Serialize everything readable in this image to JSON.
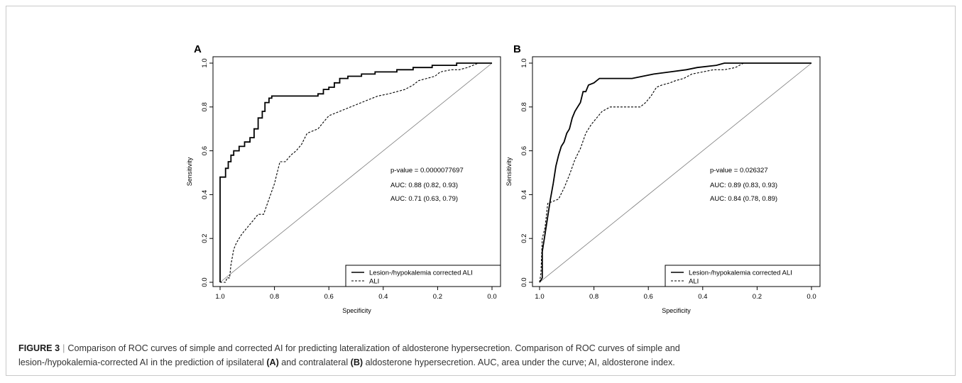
{
  "chart_data": [
    {
      "panel_label": "A",
      "type": "line",
      "xlabel": "Specificity",
      "ylabel": "Sensitivity",
      "xlim": [
        1.0,
        0.0
      ],
      "ylim": [
        0.0,
        1.0
      ],
      "x_ticks": [
        "1.0",
        "0.8",
        "0.6",
        "0.4",
        "0.2",
        "0.0"
      ],
      "y_ticks": [
        "0.0",
        "0.2",
        "0.4",
        "0.6",
        "0.8",
        "1.0"
      ],
      "annotations": [
        "p-value = 0.0000077697",
        "AUC: 0.88 (0.82, 0.93)",
        "AUC: 0.71 (0.63, 0.79)"
      ],
      "legend_position": "bottom-right",
      "series": [
        {
          "name": "Lesion-/hypokalemia corrected ALI",
          "style": "solid",
          "x": [
            1.0,
            1.0,
            0.98,
            0.98,
            0.97,
            0.97,
            0.96,
            0.96,
            0.95,
            0.95,
            0.93,
            0.93,
            0.91,
            0.91,
            0.89,
            0.89,
            0.875,
            0.875,
            0.86,
            0.86,
            0.845,
            0.845,
            0.835,
            0.835,
            0.82,
            0.82,
            0.81,
            0.81,
            0.79,
            0.76,
            0.73,
            0.7,
            0.67,
            0.64,
            0.64,
            0.62,
            0.62,
            0.6,
            0.6,
            0.58,
            0.58,
            0.56,
            0.56,
            0.53,
            0.53,
            0.48,
            0.48,
            0.43,
            0.43,
            0.35,
            0.35,
            0.29,
            0.29,
            0.22,
            0.22,
            0.13,
            0.13,
            0.09,
            0.09,
            0.0
          ],
          "y": [
            0.0,
            0.48,
            0.48,
            0.52,
            0.52,
            0.55,
            0.55,
            0.58,
            0.58,
            0.6,
            0.6,
            0.62,
            0.62,
            0.64,
            0.64,
            0.66,
            0.66,
            0.7,
            0.7,
            0.75,
            0.75,
            0.78,
            0.78,
            0.82,
            0.82,
            0.84,
            0.84,
            0.85,
            0.85,
            0.85,
            0.85,
            0.85,
            0.85,
            0.85,
            0.86,
            0.86,
            0.88,
            0.88,
            0.89,
            0.89,
            0.91,
            0.91,
            0.93,
            0.93,
            0.94,
            0.94,
            0.95,
            0.95,
            0.96,
            0.96,
            0.97,
            0.97,
            0.98,
            0.98,
            0.99,
            0.99,
            1.0,
            1.0,
            1.0,
            1.0
          ]
        },
        {
          "name": "ALI",
          "style": "dashed",
          "x": [
            1.0,
            0.98,
            0.975,
            0.965,
            0.96,
            0.95,
            0.94,
            0.92,
            0.9,
            0.88,
            0.86,
            0.84,
            0.82,
            0.8,
            0.79,
            0.78,
            0.76,
            0.74,
            0.72,
            0.7,
            0.68,
            0.66,
            0.64,
            0.62,
            0.6,
            0.58,
            0.56,
            0.54,
            0.52,
            0.5,
            0.46,
            0.42,
            0.38,
            0.35,
            0.32,
            0.29,
            0.27,
            0.24,
            0.21,
            0.19,
            0.15,
            0.12,
            0.09,
            0.07,
            0.05,
            0.0
          ],
          "y": [
            0.0,
            0.0,
            0.02,
            0.02,
            0.08,
            0.15,
            0.18,
            0.22,
            0.25,
            0.28,
            0.31,
            0.31,
            0.38,
            0.45,
            0.5,
            0.55,
            0.55,
            0.58,
            0.6,
            0.63,
            0.68,
            0.69,
            0.7,
            0.73,
            0.76,
            0.77,
            0.78,
            0.79,
            0.8,
            0.81,
            0.83,
            0.85,
            0.86,
            0.87,
            0.88,
            0.9,
            0.92,
            0.93,
            0.94,
            0.96,
            0.97,
            0.97,
            0.98,
            0.99,
            1.0,
            1.0
          ]
        }
      ]
    },
    {
      "panel_label": "B",
      "type": "line",
      "xlabel": "Specificity",
      "ylabel": "Sensitivity",
      "xlim": [
        1.0,
        0.0
      ],
      "ylim": [
        0.0,
        1.0
      ],
      "x_ticks": [
        "1.0",
        "0.8",
        "0.6",
        "0.4",
        "0.2",
        "0.0"
      ],
      "y_ticks": [
        "0.0",
        "0.2",
        "0.4",
        "0.6",
        "0.8",
        "1.0"
      ],
      "annotations": [
        "p-value = 0.026327",
        "AUC: 0.89 (0.83, 0.93)",
        "AUC: 0.84 (0.78, 0.89)"
      ],
      "legend_position": "bottom-right",
      "series": [
        {
          "name": "Lesion-/hypokalemia corrected ALI",
          "style": "solid",
          "x": [
            1.0,
            0.99,
            0.99,
            0.98,
            0.97,
            0.96,
            0.95,
            0.94,
            0.93,
            0.92,
            0.91,
            0.9,
            0.89,
            0.88,
            0.87,
            0.86,
            0.85,
            0.84,
            0.83,
            0.82,
            0.8,
            0.78,
            0.76,
            0.72,
            0.66,
            0.62,
            0.58,
            0.52,
            0.46,
            0.42,
            0.35,
            0.32,
            0.28,
            0.24,
            0.2,
            0.15,
            0.08,
            0.0
          ],
          "y": [
            0.0,
            0.02,
            0.14,
            0.22,
            0.3,
            0.38,
            0.45,
            0.53,
            0.58,
            0.62,
            0.64,
            0.68,
            0.7,
            0.75,
            0.78,
            0.8,
            0.82,
            0.87,
            0.87,
            0.9,
            0.91,
            0.93,
            0.93,
            0.93,
            0.93,
            0.94,
            0.95,
            0.96,
            0.97,
            0.98,
            0.99,
            1.0,
            1.0,
            1.0,
            1.0,
            1.0,
            1.0,
            1.0
          ]
        },
        {
          "name": "ALI",
          "style": "dashed",
          "x": [
            1.0,
            0.995,
            0.99,
            0.98,
            0.97,
            0.95,
            0.93,
            0.91,
            0.89,
            0.87,
            0.85,
            0.83,
            0.81,
            0.79,
            0.77,
            0.74,
            0.7,
            0.66,
            0.63,
            0.61,
            0.59,
            0.57,
            0.55,
            0.52,
            0.5,
            0.47,
            0.44,
            0.4,
            0.36,
            0.32,
            0.28,
            0.25,
            0.2,
            0.1,
            0.0
          ],
          "y": [
            0.0,
            0.04,
            0.2,
            0.25,
            0.36,
            0.37,
            0.38,
            0.43,
            0.49,
            0.56,
            0.61,
            0.68,
            0.72,
            0.75,
            0.78,
            0.8,
            0.8,
            0.8,
            0.8,
            0.82,
            0.85,
            0.89,
            0.9,
            0.91,
            0.92,
            0.93,
            0.95,
            0.96,
            0.97,
            0.97,
            0.98,
            1.0,
            1.0,
            1.0,
            1.0
          ]
        }
      ]
    }
  ],
  "caption": {
    "figure_label": "FIGURE 3",
    "separator": "|",
    "line1": "Comparison of ROC curves of simple and corrected AI for predicting lateralization of aldosterone hypersecretion. Comparison of ROC curves of simple and",
    "line2_a": "lesion-/hypokalemia-corrected AI in the prediction of ipsilateral",
    "ref_a": "(A)",
    "line2_b": "and contralateral",
    "ref_b": "(B)",
    "line2_c": "aldosterone hypersecretion. AUC, area under the curve; AI, aldosterone index."
  }
}
